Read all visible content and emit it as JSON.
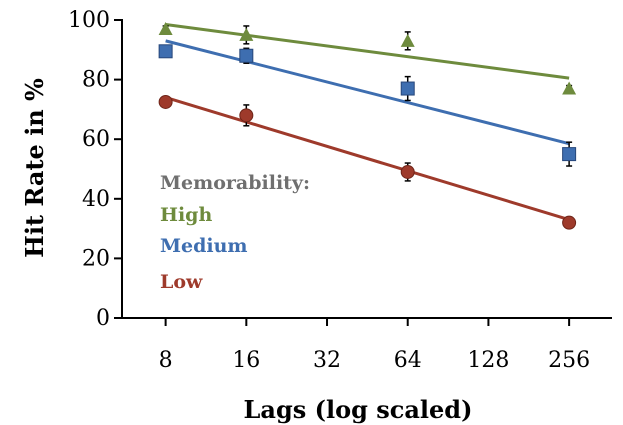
{
  "chart_data": {
    "type": "scatter",
    "xlabel": "Lags (log scaled)",
    "ylabel": "Hit Rate in %",
    "x_scale": "log2",
    "xlim": [
      5.5,
      370
    ],
    "ylim": [
      0,
      100
    ],
    "x_ticks": [
      8,
      16,
      32,
      64,
      128,
      256
    ],
    "x_tick_labels": [
      "8",
      "16",
      "32",
      "64",
      "128",
      "256"
    ],
    "y_ticks": [
      0,
      20,
      40,
      60,
      80,
      100
    ],
    "y_tick_labels": [
      "0",
      "20",
      "40",
      "60",
      "80",
      "100"
    ],
    "grid": false,
    "legend_title": "Memorability:",
    "legend_position": "lower-left",
    "series": [
      {
        "name": "High",
        "color": "#6e8b3d",
        "marker": "triangle",
        "points": [
          {
            "x": 8,
            "y": 97,
            "err": 1
          },
          {
            "x": 16,
            "y": 95,
            "err": 3
          },
          {
            "x": 64,
            "y": 93,
            "err": 3
          },
          {
            "x": 256,
            "y": 77,
            "err": 1
          }
        ],
        "trend": {
          "x": [
            8,
            256
          ],
          "y": [
            98.5,
            80.5
          ]
        }
      },
      {
        "name": "Medium",
        "color": "#3e6eb0",
        "marker": "square",
        "points": [
          {
            "x": 8,
            "y": 89.5,
            "err": 1.5
          },
          {
            "x": 16,
            "y": 88,
            "err": 2.5
          },
          {
            "x": 64,
            "y": 77,
            "err": 4
          },
          {
            "x": 256,
            "y": 55,
            "err": 4
          }
        ],
        "trend": {
          "x": [
            8,
            256
          ],
          "y": [
            93,
            58.5
          ]
        }
      },
      {
        "name": "Low",
        "color": "#9e3a2b",
        "marker": "circle",
        "points": [
          {
            "x": 8,
            "y": 72.5,
            "err": 1
          },
          {
            "x": 16,
            "y": 68,
            "err": 3.5
          },
          {
            "x": 64,
            "y": 49,
            "err": 3
          },
          {
            "x": 256,
            "y": 32,
            "err": 1
          }
        ],
        "trend": {
          "x": [
            8,
            256
          ],
          "y": [
            74,
            33
          ]
        }
      }
    ]
  },
  "colors": {
    "legend_title": "#6f6f6f",
    "axis": "#000000"
  }
}
